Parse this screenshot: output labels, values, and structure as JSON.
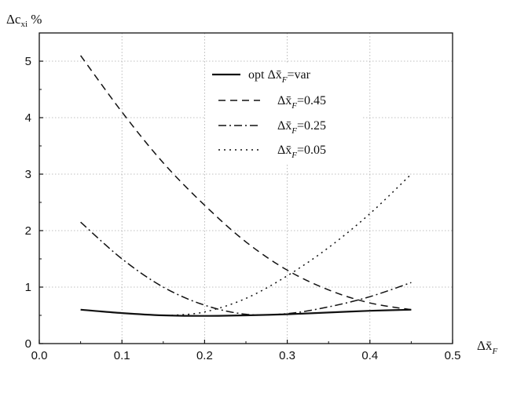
{
  "chart_data": {
    "type": "line",
    "ylabel": "Δc",
    "ylabel_sub": "xi",
    "ylabel_unit": " %",
    "xlabel": "Δx̄",
    "xlabel_sub": "F",
    "xlim": [
      0.0,
      0.5
    ],
    "ylim": [
      0,
      5.5
    ],
    "xticks": [
      "0.0",
      "0.1",
      "0.2",
      "0.3",
      "0.4",
      "0.5"
    ],
    "yticks": [
      "0",
      "1",
      "2",
      "3",
      "4",
      "5"
    ],
    "grid": "dotted",
    "legend_position": "top-center",
    "series": [
      {
        "name_prefix": "opt Δx̄",
        "name_sub": "F",
        "name_suffix": "=var",
        "style": "solid",
        "x": [
          0.05,
          0.1,
          0.15,
          0.2,
          0.25,
          0.3,
          0.35,
          0.4,
          0.45
        ],
        "y": [
          0.6,
          0.54,
          0.5,
          0.49,
          0.5,
          0.52,
          0.55,
          0.58,
          0.6
        ]
      },
      {
        "name_prefix": "Δx̄",
        "name_sub": "F",
        "name_suffix": "=0.45",
        "style": "dashed",
        "x": [
          0.05,
          0.1,
          0.15,
          0.2,
          0.25,
          0.3,
          0.35,
          0.4,
          0.45
        ],
        "y": [
          5.1,
          4.1,
          3.2,
          2.45,
          1.8,
          1.3,
          0.95,
          0.72,
          0.6
        ]
      },
      {
        "name_prefix": "Δx̄",
        "name_sub": "F",
        "name_suffix": "=0.25",
        "style": "dashdot",
        "x": [
          0.05,
          0.1,
          0.15,
          0.2,
          0.25,
          0.3,
          0.35,
          0.4,
          0.45
        ],
        "y": [
          2.15,
          1.5,
          1.0,
          0.68,
          0.52,
          0.53,
          0.65,
          0.83,
          1.08
        ]
      },
      {
        "name_prefix": "Δx̄",
        "name_sub": "F",
        "name_suffix": "=0.05",
        "style": "dotted",
        "x": [
          0.16,
          0.2,
          0.25,
          0.3,
          0.35,
          0.4,
          0.45
        ],
        "y": [
          0.5,
          0.56,
          0.8,
          1.2,
          1.7,
          2.3,
          3.0
        ]
      }
    ]
  }
}
